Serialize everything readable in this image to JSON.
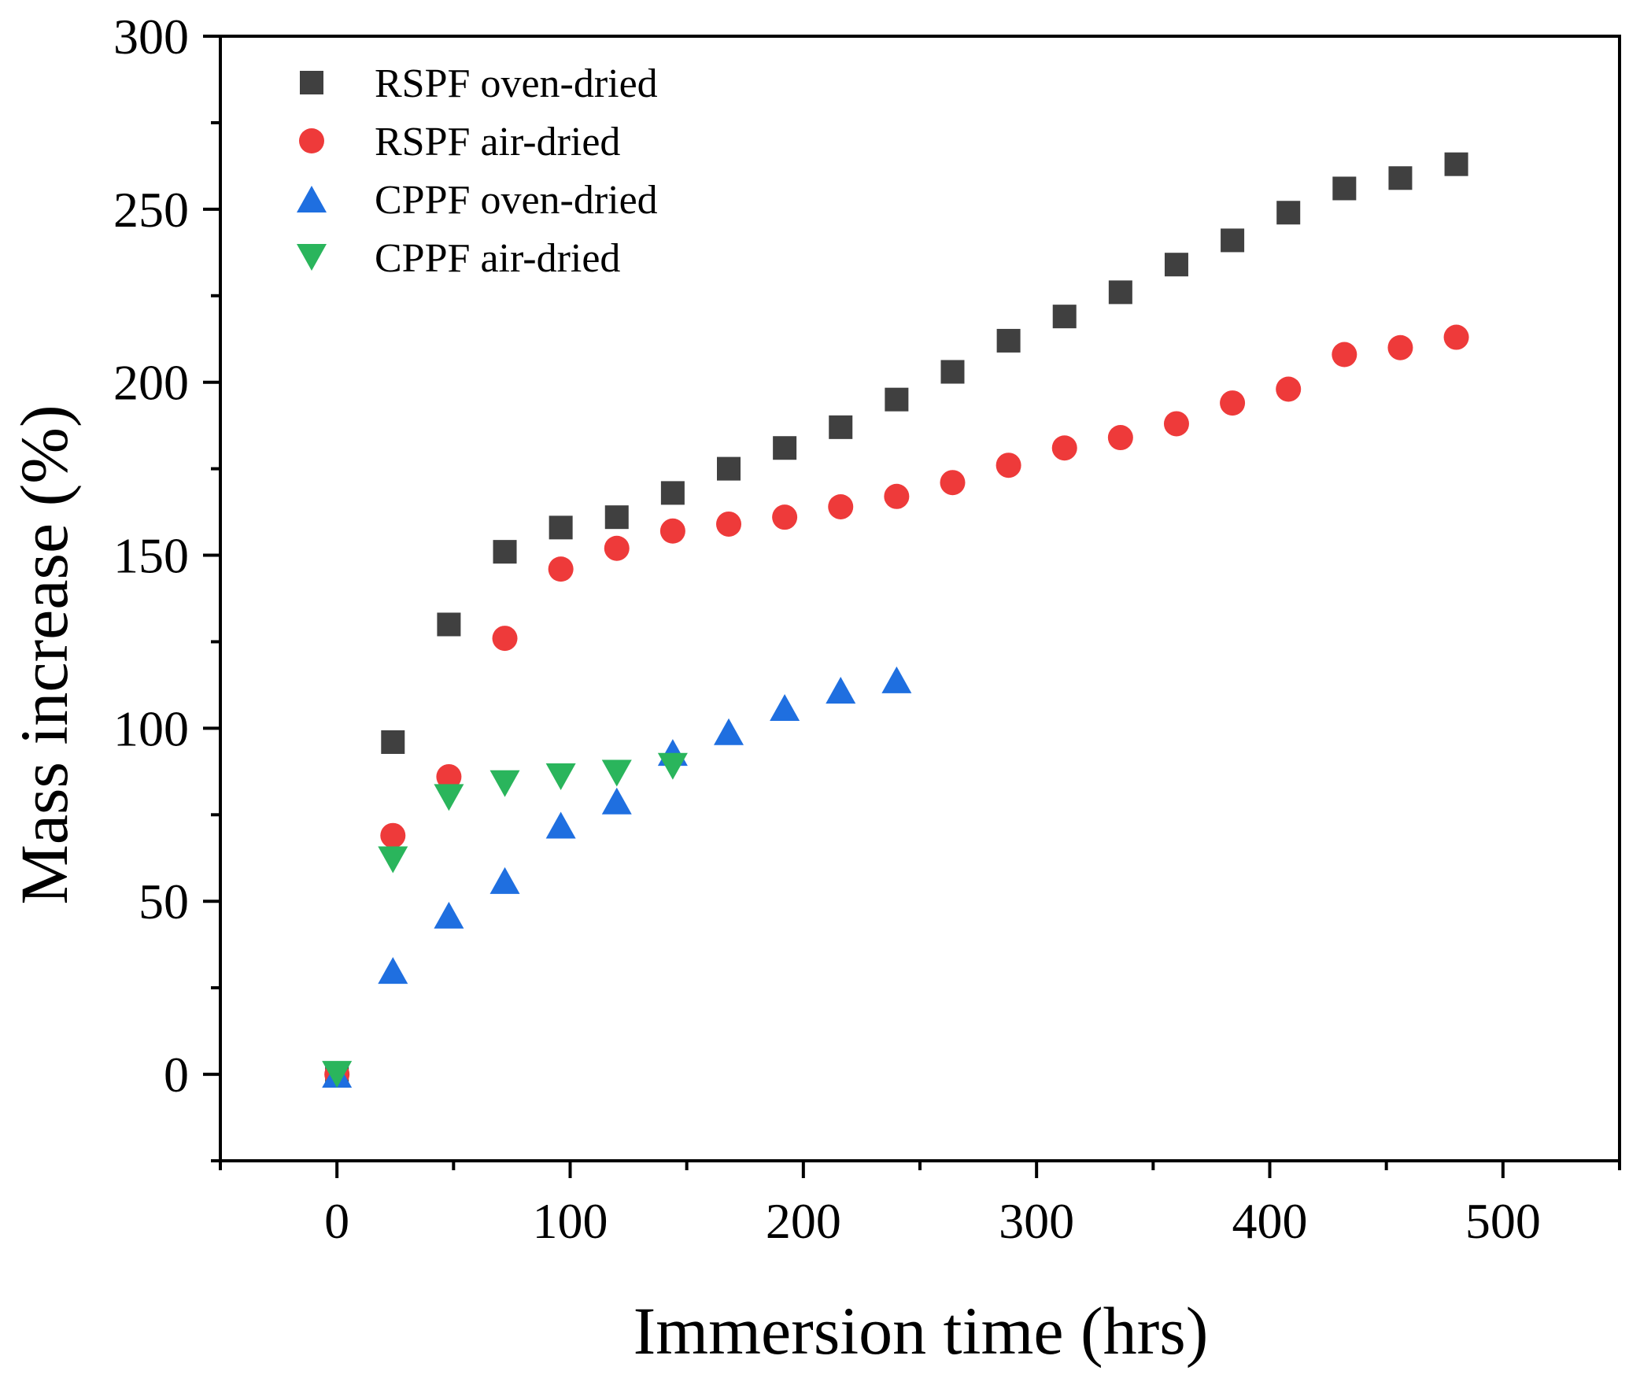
{
  "chart_data": {
    "type": "scatter",
    "title": "",
    "xlabel": "Immersion time (hrs)",
    "ylabel": "Mass increase (%)",
    "xlim": [
      -50,
      550
    ],
    "ylim": [
      -25,
      300
    ],
    "xticks": [
      0,
      100,
      200,
      300,
      400,
      500
    ],
    "yticks": [
      0,
      50,
      100,
      150,
      200,
      250,
      300
    ],
    "grid": false,
    "legend_position": "top-left",
    "series": [
      {
        "name": "RSPF oven-dried",
        "marker": "square",
        "color": "#404040",
        "x": [
          0,
          24,
          48,
          72,
          96,
          120,
          144,
          168,
          192,
          216,
          240,
          264,
          288,
          312,
          336,
          360,
          384,
          408,
          432,
          456,
          480
        ],
        "y": [
          0,
          96,
          130,
          151,
          158,
          161,
          168,
          175,
          181,
          187,
          195,
          203,
          212,
          219,
          226,
          234,
          241,
          249,
          256,
          259,
          263
        ]
      },
      {
        "name": "RSPF air-dried",
        "marker": "circle",
        "color": "#ee3a3a",
        "x": [
          0,
          24,
          48,
          72,
          96,
          120,
          144,
          168,
          192,
          216,
          240,
          264,
          288,
          312,
          336,
          360,
          384,
          408,
          432,
          456,
          480
        ],
        "y": [
          0,
          69,
          86,
          126,
          146,
          152,
          157,
          159,
          161,
          164,
          167,
          171,
          176,
          181,
          184,
          188,
          194,
          198,
          208,
          210,
          213
        ]
      },
      {
        "name": "CPPF oven-dried",
        "marker": "triangle-up",
        "color": "#1f6fe0",
        "x": [
          0,
          24,
          48,
          72,
          96,
          120,
          144,
          168,
          192,
          216,
          240
        ],
        "y": [
          0,
          30,
          46,
          56,
          72,
          79,
          93,
          99,
          106,
          111,
          114
        ]
      },
      {
        "name": "CPPF air-dried",
        "marker": "triangle-down",
        "color": "#2ab55c",
        "x": [
          0,
          24,
          48,
          72,
          96,
          120,
          144
        ],
        "y": [
          0,
          62,
          80,
          84,
          86,
          87,
          89
        ]
      }
    ]
  }
}
